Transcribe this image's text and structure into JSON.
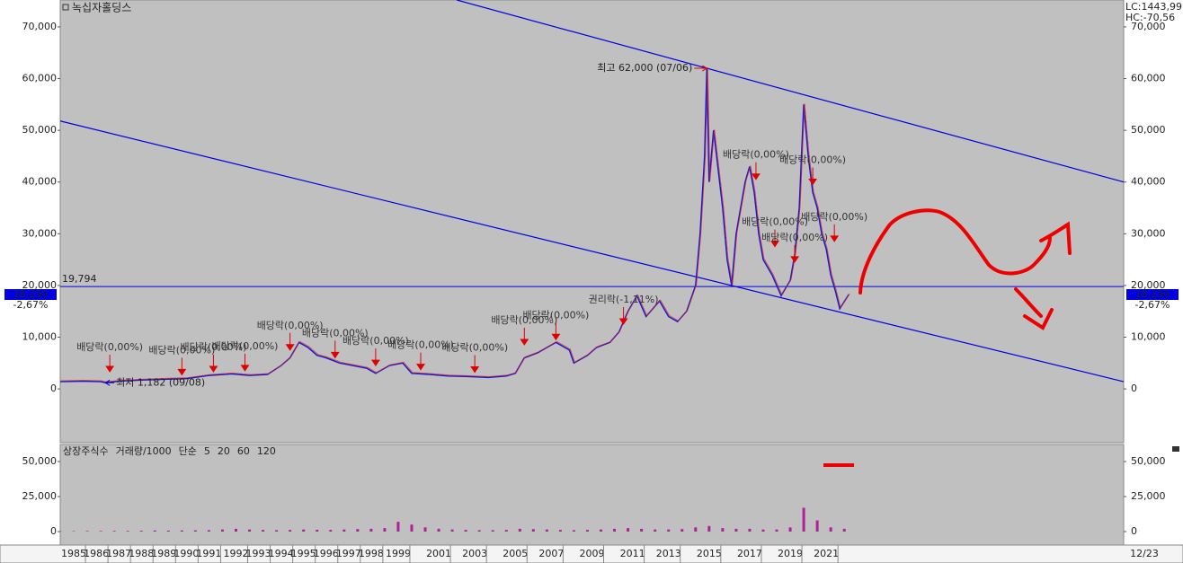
{
  "chart_data": [
    {
      "type": "line",
      "title": "녹십자홀딩스",
      "corner_labels": [
        {
          "text": "LC:1443,99",
          "color": "#e00000"
        },
        {
          "text": "HC:-70,56",
          "color": "#00008b"
        }
      ],
      "ylim": [
        -10400,
        75200
      ],
      "yticks": [
        {
          "value": 0,
          "label": "0"
        },
        {
          "value": 10000,
          "label": "10,000"
        },
        {
          "value": 20000,
          "label": "20,000"
        },
        {
          "value": 30000,
          "label": "30,000"
        },
        {
          "value": 40000,
          "label": "40,000"
        },
        {
          "value": 50000,
          "label": "50,000"
        },
        {
          "value": 60000,
          "label": "60,000"
        },
        {
          "value": 70000,
          "label": "70,000"
        }
      ],
      "xlim": [
        0,
        236
      ],
      "series": [
        {
          "color": "#1a1acc",
          "x": [
            0,
            5,
            9,
            10,
            13,
            18,
            24,
            28,
            33,
            38,
            42,
            46,
            49,
            51,
            53,
            55,
            57,
            59,
            62,
            65,
            68,
            70,
            73,
            76,
            78,
            82,
            86,
            90,
            95,
            99,
            101,
            103,
            106,
            108,
            110,
            113,
            114,
            117,
            119,
            122,
            124,
            126,
            128,
            130,
            133,
            135,
            137,
            139,
            141,
            142,
            143,
            143.5,
            144,
            145,
            147,
            148,
            149,
            150,
            152,
            153,
            154,
            155,
            156,
            158,
            160,
            162,
            163,
            164,
            165,
            166,
            167,
            168,
            169,
            170,
            171,
            172,
            173,
            175
          ],
          "values": [
            1400,
            1500,
            1400,
            1182,
            1500,
            1700,
            1900,
            2000,
            2600,
            2900,
            2600,
            2800,
            4500,
            6000,
            9000,
            8000,
            6500,
            6000,
            5000,
            4500,
            4000,
            3000,
            4500,
            5000,
            3000,
            2800,
            2500,
            2400,
            2200,
            2500,
            3000,
            6000,
            7000,
            8000,
            9000,
            7500,
            5000,
            6500,
            8000,
            9000,
            11000,
            15000,
            18000,
            14000,
            17000,
            14000,
            13000,
            15000,
            20000,
            30000,
            45000,
            62000,
            40000,
            50000,
            35000,
            25000,
            20000,
            30000,
            40000,
            43000,
            38000,
            30000,
            25000,
            22000,
            18000,
            21000,
            26000,
            35000,
            55000,
            45000,
            38000,
            35000,
            30000,
            27000,
            22000,
            19000,
            15500,
            18250
          ]
        }
      ],
      "trend_lines": [
        {
          "color": "#0000e0",
          "x": [
            88,
            236
          ],
          "y": [
            75200,
            40000
          ]
        },
        {
          "color": "#0000e0",
          "x": [
            0,
            236
          ],
          "y": [
            51800,
            1400
          ]
        }
      ],
      "level_line": {
        "value": 19794,
        "label": "19,794",
        "color": "#0000e0"
      },
      "last": {
        "value": 18250,
        "label": "18,250",
        "change": "-2,67%"
      },
      "high": {
        "x": 143.5,
        "value": 62000,
        "label": "최고 62,000 (07/06)"
      },
      "low": {
        "x": 10,
        "value": 1182,
        "label": "최저 1,182 (09/08)"
      },
      "events": [
        {
          "x": 11,
          "value": 2800,
          "label": "배당락(0,00%)"
        },
        {
          "x": 27,
          "value": 2200,
          "label": "배당락(0,00%)"
        },
        {
          "x": 34,
          "value": 2800,
          "label": "배당락(0,00%)"
        },
        {
          "x": 41,
          "value": 3000,
          "label": "배당락(0,00%)"
        },
        {
          "x": 51,
          "value": 7000,
          "label": "배당락(0,00%)"
        },
        {
          "x": 61,
          "value": 5500,
          "label": "배당락(0,00%)"
        },
        {
          "x": 70,
          "value": 4000,
          "label": "배당락(0,00%)"
        },
        {
          "x": 80,
          "value": 3200,
          "label": "배당락(0,00%)"
        },
        {
          "x": 92,
          "value": 2700,
          "label": "배당락(0,00%)"
        },
        {
          "x": 103,
          "value": 8000,
          "label": "배당락(0,00%)"
        },
        {
          "x": 110,
          "value": 9000,
          "label": "배당락(0,00%)"
        },
        {
          "x": 125,
          "value": 12000,
          "label": "권리락(-1,11%)"
        },
        {
          "x": 154.4,
          "value": 40000,
          "label": "배당락(0,00%)"
        },
        {
          "x": 158.6,
          "value": 27000,
          "label": "배당락(0,00%)"
        },
        {
          "x": 163,
          "value": 24000,
          "label": "배당락(0,00%)"
        },
        {
          "x": 167,
          "value": 39000,
          "label": "배당락(0,00%)"
        },
        {
          "x": 171.8,
          "value": 28000,
          "label": "배당락(0,00%)"
        }
      ]
    },
    {
      "type": "bar",
      "legend": [
        {
          "text": "상장주식수",
          "color": "#e00000"
        },
        {
          "text": "거래량/1000",
          "color": "#008b8b"
        },
        {
          "text": "단순",
          "color": "#cc00cc"
        },
        {
          "text": "5",
          "color": "#cc00cc"
        },
        {
          "text": "20",
          "color": "#d4c000"
        },
        {
          "text": "60",
          "color": "#008800"
        },
        {
          "text": "120",
          "color": "#666666"
        }
      ],
      "ylim": [
        -9600,
        62200
      ],
      "yticks": [
        0,
        {
          "value": 25000,
          "label": "25,000"
        },
        {
          "value": 50000,
          "label": "50,000"
        }
      ],
      "xlim": [
        0,
        236
      ],
      "xticks": [
        {
          "value": 3,
          "label": "1985"
        },
        {
          "value": 8,
          "label": "1986"
        },
        {
          "value": 13,
          "label": "1987"
        },
        {
          "value": 18,
          "label": "1988"
        },
        {
          "value": 23,
          "label": "1989"
        },
        {
          "value": 28,
          "label": "1990"
        },
        {
          "value": 33,
          "label": "1991"
        },
        {
          "value": 39,
          "label": "1992"
        },
        {
          "value": 44,
          "label": "1993"
        },
        {
          "value": 49,
          "label": "1994"
        },
        {
          "value": 54,
          "label": "1995"
        },
        {
          "value": 59,
          "label": "1996"
        },
        {
          "value": 64,
          "label": "1997"
        },
        {
          "value": 69,
          "label": "1998"
        },
        {
          "value": 75,
          "label": "1999"
        },
        {
          "value": 84,
          "label": "2001"
        },
        {
          "value": 92,
          "label": "2003"
        },
        {
          "value": 101,
          "label": "2005"
        },
        {
          "value": 109,
          "label": "2007"
        },
        {
          "value": 118,
          "label": "2009"
        },
        {
          "value": 127,
          "label": "2011"
        },
        {
          "value": 135,
          "label": "2013"
        },
        {
          "value": 144,
          "label": "2015"
        },
        {
          "value": 153,
          "label": "2017"
        },
        {
          "value": 162,
          "label": "2019"
        },
        {
          "value": 170,
          "label": "2021"
        }
      ],
      "date_label": "12/23",
      "series": [
        {
          "color": "#b0209a",
          "x": [
            0,
            3,
            6,
            9,
            12,
            15,
            18,
            21,
            24,
            27,
            30,
            33,
            36,
            39,
            42,
            45,
            48,
            51,
            54,
            57,
            60,
            63,
            66,
            69,
            72,
            75,
            78,
            81,
            84,
            87,
            90,
            93,
            96,
            99,
            102,
            105,
            108,
            111,
            114,
            117,
            120,
            123,
            126,
            129,
            132,
            135,
            138,
            141,
            144,
            147,
            150,
            153,
            156,
            159,
            162,
            165,
            168,
            171,
            174
          ],
          "values": [
            300,
            300,
            400,
            400,
            500,
            500,
            600,
            800,
            700,
            800,
            900,
            1000,
            1500,
            2000,
            1500,
            1200,
            1000,
            1200,
            1500,
            1300,
            1200,
            1500,
            1800,
            2000,
            2500,
            7000,
            5000,
            3000,
            2000,
            1500,
            1200,
            1000,
            1000,
            1200,
            2000,
            1800,
            1500,
            1200,
            1000,
            1200,
            1500,
            2000,
            2500,
            2000,
            1500,
            1500,
            1800,
            3000,
            4000,
            2500,
            2000,
            2000,
            1500,
            1500,
            3000,
            17000,
            8000,
            3000,
            2000
          ]
        }
      ]
    }
  ]
}
